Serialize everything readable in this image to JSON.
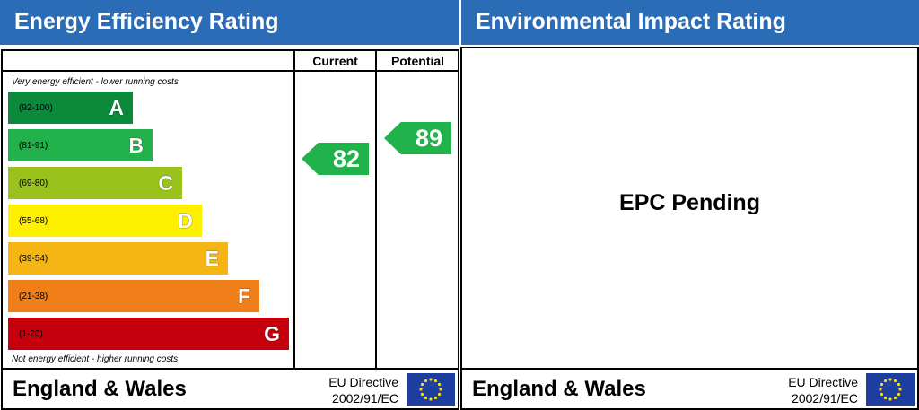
{
  "energy_efficiency": {
    "title": "Energy Efficiency Rating",
    "columns": [
      "Current",
      "Potential"
    ],
    "top_note": "Very energy efficient - lower running costs",
    "bottom_note": "Not energy efficient - higher running costs",
    "bands": [
      {
        "range": "(92-100)",
        "letter": "A"
      },
      {
        "range": "(81-91)",
        "letter": "B"
      },
      {
        "range": "(69-80)",
        "letter": "C"
      },
      {
        "range": "(55-68)",
        "letter": "D"
      },
      {
        "range": "(39-54)",
        "letter": "E"
      },
      {
        "range": "(21-38)",
        "letter": "F"
      },
      {
        "range": "(1-20)",
        "letter": "G"
      }
    ],
    "current": 82,
    "potential": 89,
    "footer": {
      "region": "England & Wales",
      "directive": "EU Directive",
      "directive_number": "2002/91/EC"
    }
  },
  "environmental_impact": {
    "title": "Environmental Impact Rating",
    "status": "EPC Pending",
    "footer": {
      "region": "England & Wales",
      "directive": "EU Directive",
      "directive_number": "2002/91/EC"
    }
  }
}
